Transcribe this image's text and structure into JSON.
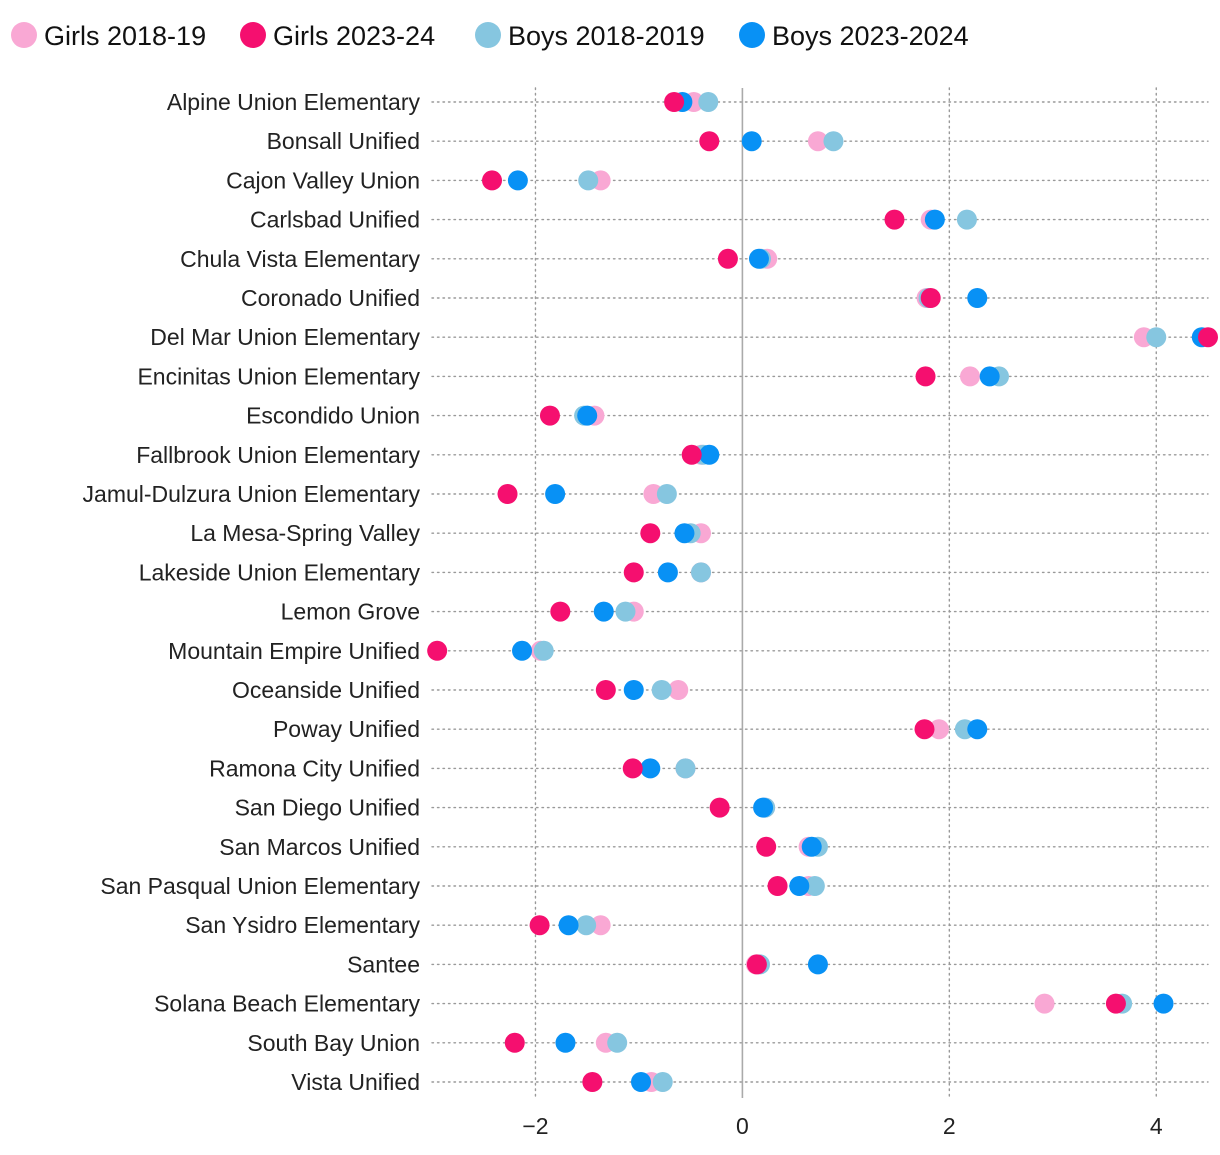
{
  "colors": {
    "girls_2018": "#f9a8d4",
    "girls_2023": "#f50f6f",
    "boys_2018": "#86c6e0",
    "boys_2023": "#0891f5",
    "grid": "#999999",
    "zero_line": "#aaaaaa"
  },
  "chart_data": {
    "type": "scatter",
    "title": "",
    "xlabel": "",
    "ylabel": "",
    "xlim": [
      -3.0,
      4.5
    ],
    "xticks": [
      -2,
      0,
      2,
      4
    ],
    "xtick_labels": [
      "−2",
      "0",
      "2",
      "4"
    ],
    "legend_position": "top-left",
    "series": [
      {
        "name": "Girls 2018-19",
        "color_key": "girls_2018"
      },
      {
        "name": "Girls 2023-24",
        "color_key": "girls_2023"
      },
      {
        "name": "Boys 2018-2019",
        "color_key": "boys_2018"
      },
      {
        "name": "Boys 2023-2024",
        "color_key": "boys_2023"
      }
    ],
    "categories": [
      "Alpine Union Elementary",
      "Bonsall Unified",
      "Cajon Valley Union",
      "Carlsbad Unified",
      "Chula Vista Elementary",
      "Coronado Unified",
      "Del Mar Union Elementary",
      "Encinitas Union Elementary",
      "Escondido Union",
      "Fallbrook Union Elementary",
      "Jamul-Dulzura Union Elementary",
      "La Mesa-Spring Valley",
      "Lakeside Union Elementary",
      "Lemon Grove",
      "Mountain Empire Unified",
      "Oceanside Unified",
      "Poway Unified",
      "Ramona City Unified",
      "San Diego Unified",
      "San Marcos Unified",
      "San Pasqual Union Elementary",
      "San Ysidro Elementary",
      "Santee",
      "Solana Beach Elementary",
      "South Bay Union",
      "Vista Unified"
    ],
    "values": {
      "girls_2018": [
        -0.47,
        0.73,
        -1.37,
        1.82,
        0.24,
        1.78,
        3.88,
        2.2,
        -1.43,
        -0.4,
        -0.86,
        -0.4,
        -0.4,
        -1.05,
        -1.95,
        -0.62,
        1.9,
        -0.55,
        0.22,
        0.64,
        0.64,
        -1.37,
        0.13,
        2.92,
        -1.32,
        -0.88
      ],
      "girls_2023": [
        -0.66,
        -0.32,
        -2.42,
        1.47,
        -0.14,
        1.82,
        4.5,
        1.77,
        -1.86,
        -0.49,
        -2.27,
        -0.89,
        -1.05,
        -1.76,
        -2.95,
        -1.32,
        1.76,
        -1.06,
        -0.22,
        0.23,
        0.34,
        -1.96,
        0.14,
        3.61,
        -2.2,
        -1.45
      ],
      "boys_2018": [
        -0.33,
        0.88,
        -1.49,
        2.17,
        0.18,
        1.8,
        4.0,
        2.48,
        -1.53,
        -0.38,
        -0.73,
        -0.5,
        -0.4,
        -1.13,
        -1.92,
        -0.78,
        2.15,
        -0.55,
        0.22,
        0.73,
        0.7,
        -1.51,
        0.17,
        3.67,
        -1.21,
        -0.77
      ],
      "boys_2023": [
        -0.58,
        0.09,
        -2.17,
        1.86,
        0.16,
        2.27,
        4.44,
        2.39,
        -1.5,
        -0.32,
        -1.81,
        -0.56,
        -0.72,
        -1.34,
        -2.13,
        -1.05,
        2.27,
        -0.89,
        0.2,
        0.67,
        0.55,
        -1.68,
        0.73,
        4.07,
        -1.71,
        -0.98
      ]
    }
  }
}
